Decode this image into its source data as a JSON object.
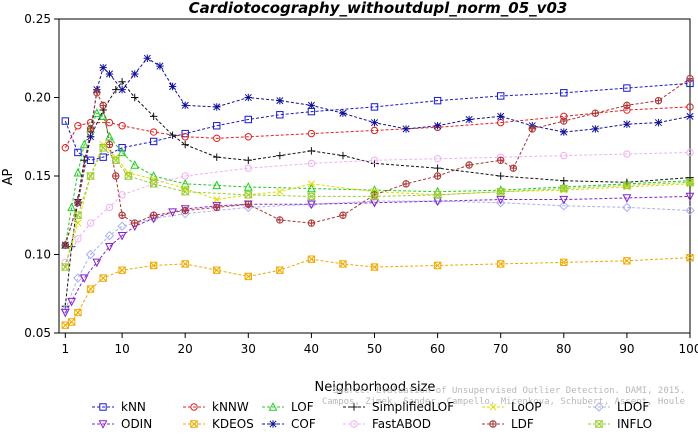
{
  "chart_data": {
    "type": "line",
    "title": "Cardiotocography_withoutdupl_norm_05_v03",
    "xlabel": "Neighborhood size",
    "ylabel": "AP",
    "xlim": [
      0,
      100
    ],
    "ylim": [
      0.05,
      0.25
    ],
    "xticks": [
      1,
      10,
      20,
      30,
      40,
      50,
      60,
      70,
      80,
      90,
      100
    ],
    "yticks": [
      0.05,
      0.1,
      0.15,
      0.2,
      0.25
    ],
    "grid": false,
    "legend_position": "bottom",
    "watermark": [
      "Source: Evaluation of Unsupervised Outlier Detection. DAMI, 2015.",
      "Campos, Zimek, Sander, Campello, Micenkova, Schubert, Assent, Houle"
    ],
    "series": [
      {
        "name": "kNN",
        "color": "#1a1acc",
        "marker": "square",
        "points": [
          [
            1,
            0.185
          ],
          [
            3,
            0.165
          ],
          [
            5,
            0.16
          ],
          [
            7,
            0.162
          ],
          [
            10,
            0.168
          ],
          [
            15,
            0.172
          ],
          [
            20,
            0.177
          ],
          [
            25,
            0.182
          ],
          [
            30,
            0.186
          ],
          [
            35,
            0.189
          ],
          [
            40,
            0.191
          ],
          [
            50,
            0.194
          ],
          [
            60,
            0.198
          ],
          [
            70,
            0.201
          ],
          [
            80,
            0.203
          ],
          [
            90,
            0.206
          ],
          [
            100,
            0.209
          ]
        ]
      },
      {
        "name": "kNNW",
        "color": "#dd2222",
        "marker": "circle",
        "points": [
          [
            1,
            0.168
          ],
          [
            3,
            0.182
          ],
          [
            5,
            0.184
          ],
          [
            8,
            0.184
          ],
          [
            10,
            0.182
          ],
          [
            15,
            0.178
          ],
          [
            20,
            0.175
          ],
          [
            25,
            0.174
          ],
          [
            30,
            0.175
          ],
          [
            40,
            0.177
          ],
          [
            50,
            0.179
          ],
          [
            60,
            0.181
          ],
          [
            70,
            0.184
          ],
          [
            80,
            0.188
          ],
          [
            90,
            0.192
          ],
          [
            100,
            0.194
          ]
        ]
      },
      {
        "name": "LOF",
        "color": "#22cc22",
        "marker": "triangle-up",
        "points": [
          [
            1,
            0.106
          ],
          [
            2,
            0.13
          ],
          [
            3,
            0.152
          ],
          [
            4,
            0.17
          ],
          [
            5,
            0.18
          ],
          [
            6,
            0.19
          ],
          [
            7,
            0.188
          ],
          [
            8,
            0.175
          ],
          [
            10,
            0.165
          ],
          [
            12,
            0.157
          ],
          [
            15,
            0.15
          ],
          [
            20,
            0.145
          ],
          [
            25,
            0.144
          ],
          [
            30,
            0.143
          ],
          [
            40,
            0.142
          ],
          [
            50,
            0.141
          ],
          [
            60,
            0.14
          ],
          [
            70,
            0.141
          ],
          [
            80,
            0.143
          ],
          [
            90,
            0.145
          ],
          [
            100,
            0.147
          ]
        ]
      },
      {
        "name": "SimplifiedLOF",
        "color": "#111111",
        "marker": "plus",
        "points": [
          [
            1,
            0.067
          ],
          [
            2,
            0.105
          ],
          [
            3,
            0.135
          ],
          [
            4,
            0.16
          ],
          [
            5,
            0.175
          ],
          [
            7,
            0.192
          ],
          [
            9,
            0.205
          ],
          [
            10,
            0.21
          ],
          [
            12,
            0.2
          ],
          [
            15,
            0.188
          ],
          [
            18,
            0.176
          ],
          [
            20,
            0.17
          ],
          [
            25,
            0.162
          ],
          [
            30,
            0.16
          ],
          [
            35,
            0.163
          ],
          [
            40,
            0.166
          ],
          [
            45,
            0.163
          ],
          [
            50,
            0.158
          ],
          [
            60,
            0.155
          ],
          [
            70,
            0.15
          ],
          [
            80,
            0.147
          ],
          [
            90,
            0.146
          ],
          [
            100,
            0.149
          ]
        ]
      },
      {
        "name": "LoOP",
        "color": "#dddd00",
        "marker": "x",
        "points": [
          [
            1,
            0.092
          ],
          [
            3,
            0.12
          ],
          [
            5,
            0.15
          ],
          [
            7,
            0.17
          ],
          [
            9,
            0.162
          ],
          [
            11,
            0.152
          ],
          [
            15,
            0.148
          ],
          [
            20,
            0.142
          ],
          [
            25,
            0.135
          ],
          [
            30,
            0.138
          ],
          [
            35,
            0.14
          ],
          [
            40,
            0.145
          ],
          [
            50,
            0.14
          ],
          [
            60,
            0.138
          ],
          [
            70,
            0.14
          ],
          [
            80,
            0.141
          ],
          [
            90,
            0.143
          ],
          [
            100,
            0.145
          ]
        ]
      },
      {
        "name": "LDOF",
        "color": "#aab0ee",
        "marker": "diamond",
        "points": [
          [
            1,
            0.065
          ],
          [
            3,
            0.085
          ],
          [
            5,
            0.1
          ],
          [
            8,
            0.112
          ],
          [
            10,
            0.118
          ],
          [
            15,
            0.123
          ],
          [
            20,
            0.126
          ],
          [
            30,
            0.13
          ],
          [
            40,
            0.132
          ],
          [
            50,
            0.134
          ],
          [
            60,
            0.134
          ],
          [
            70,
            0.133
          ],
          [
            80,
            0.131
          ],
          [
            90,
            0.13
          ],
          [
            100,
            0.128
          ]
        ]
      },
      {
        "name": "ODIN",
        "color": "#8822cc",
        "marker": "triangle-down",
        "points": [
          [
            1,
            0.063
          ],
          [
            2,
            0.07
          ],
          [
            4,
            0.085
          ],
          [
            6,
            0.095
          ],
          [
            8,
            0.105
          ],
          [
            10,
            0.112
          ],
          [
            12,
            0.118
          ],
          [
            15,
            0.123
          ],
          [
            18,
            0.127
          ],
          [
            20,
            0.129
          ],
          [
            25,
            0.131
          ],
          [
            30,
            0.132
          ],
          [
            40,
            0.132
          ],
          [
            50,
            0.133
          ],
          [
            60,
            0.134
          ],
          [
            70,
            0.135
          ],
          [
            80,
            0.135
          ],
          [
            90,
            0.136
          ],
          [
            100,
            0.137
          ]
        ]
      },
      {
        "name": "KDEOS",
        "color": "#eeaa00",
        "marker": "square-x",
        "points": [
          [
            1,
            0.055
          ],
          [
            2,
            0.057
          ],
          [
            3,
            0.063
          ],
          [
            5,
            0.078
          ],
          [
            7,
            0.085
          ],
          [
            10,
            0.09
          ],
          [
            15,
            0.093
          ],
          [
            20,
            0.094
          ],
          [
            25,
            0.09
          ],
          [
            30,
            0.086
          ],
          [
            35,
            0.09
          ],
          [
            40,
            0.097
          ],
          [
            45,
            0.094
          ],
          [
            50,
            0.092
          ],
          [
            60,
            0.093
          ],
          [
            70,
            0.094
          ],
          [
            80,
            0.095
          ],
          [
            90,
            0.096
          ],
          [
            100,
            0.098
          ]
        ]
      },
      {
        "name": "COF",
        "color": "#111199",
        "marker": "star",
        "points": [
          [
            1,
            0.106
          ],
          [
            3,
            0.133
          ],
          [
            5,
            0.175
          ],
          [
            6,
            0.205
          ],
          [
            7,
            0.219
          ],
          [
            8,
            0.215
          ],
          [
            10,
            0.205
          ],
          [
            12,
            0.215
          ],
          [
            14,
            0.225
          ],
          [
            16,
            0.22
          ],
          [
            18,
            0.207
          ],
          [
            20,
            0.195
          ],
          [
            25,
            0.194
          ],
          [
            30,
            0.2
          ],
          [
            35,
            0.198
          ],
          [
            40,
            0.195
          ],
          [
            45,
            0.19
          ],
          [
            50,
            0.184
          ],
          [
            55,
            0.18
          ],
          [
            60,
            0.182
          ],
          [
            65,
            0.186
          ],
          [
            70,
            0.188
          ],
          [
            75,
            0.182
          ],
          [
            80,
            0.178
          ],
          [
            85,
            0.18
          ],
          [
            90,
            0.183
          ],
          [
            95,
            0.184
          ],
          [
            100,
            0.188
          ]
        ]
      },
      {
        "name": "FastABOD",
        "color": "#f0b0f0",
        "marker": "circle",
        "points": [
          [
            1,
            0.095
          ],
          [
            3,
            0.11
          ],
          [
            5,
            0.12
          ],
          [
            8,
            0.13
          ],
          [
            10,
            0.138
          ],
          [
            15,
            0.145
          ],
          [
            20,
            0.15
          ],
          [
            30,
            0.155
          ],
          [
            40,
            0.158
          ],
          [
            50,
            0.16
          ],
          [
            60,
            0.161
          ],
          [
            70,
            0.162
          ],
          [
            80,
            0.163
          ],
          [
            90,
            0.164
          ],
          [
            100,
            0.165
          ]
        ]
      },
      {
        "name": "LDF",
        "color": "#aa3333",
        "marker": "circle-plus",
        "points": [
          [
            1,
            0.106
          ],
          [
            3,
            0.133
          ],
          [
            5,
            0.18
          ],
          [
            6,
            0.203
          ],
          [
            7,
            0.195
          ],
          [
            8,
            0.17
          ],
          [
            9,
            0.15
          ],
          [
            10,
            0.125
          ],
          [
            12,
            0.12
          ],
          [
            15,
            0.125
          ],
          [
            20,
            0.128
          ],
          [
            25,
            0.13
          ],
          [
            30,
            0.132
          ],
          [
            35,
            0.122
          ],
          [
            40,
            0.12
          ],
          [
            45,
            0.125
          ],
          [
            50,
            0.138
          ],
          [
            55,
            0.145
          ],
          [
            60,
            0.15
          ],
          [
            65,
            0.157
          ],
          [
            70,
            0.16
          ],
          [
            72,
            0.155
          ],
          [
            75,
            0.18
          ],
          [
            80,
            0.185
          ],
          [
            85,
            0.19
          ],
          [
            90,
            0.195
          ],
          [
            95,
            0.198
          ],
          [
            100,
            0.212
          ]
        ]
      },
      {
        "name": "INFLO",
        "color": "#99cc33",
        "marker": "hourglass",
        "points": [
          [
            1,
            0.092
          ],
          [
            3,
            0.125
          ],
          [
            5,
            0.15
          ],
          [
            7,
            0.168
          ],
          [
            9,
            0.16
          ],
          [
            11,
            0.15
          ],
          [
            15,
            0.145
          ],
          [
            20,
            0.14
          ],
          [
            30,
            0.138
          ],
          [
            40,
            0.137
          ],
          [
            50,
            0.137
          ],
          [
            60,
            0.138
          ],
          [
            70,
            0.14
          ],
          [
            80,
            0.142
          ],
          [
            90,
            0.144
          ],
          [
            100,
            0.146
          ]
        ]
      }
    ]
  }
}
